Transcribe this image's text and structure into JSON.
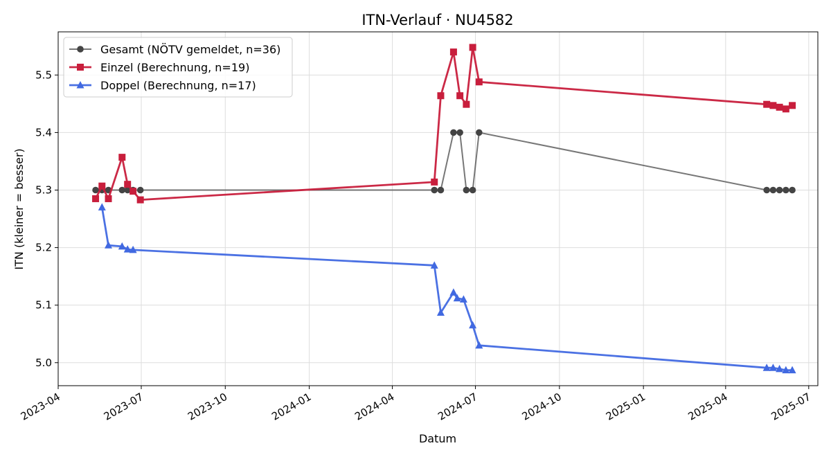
{
  "chart_data": {
    "type": "line",
    "title": "ITN-Verlauf · NU4582",
    "xlabel": "Datum",
    "ylabel": "ITN  (kleiner = besser)",
    "x_is_date": true,
    "xlim": [
      "2023-04-01",
      "2025-07-11"
    ],
    "ylim": [
      4.96,
      5.575
    ],
    "grid": true,
    "legend_position": "top-left",
    "x_ticks": [
      "2023-04",
      "2023-07",
      "2023-10",
      "2024-01",
      "2024-04",
      "2024-07",
      "2024-10",
      "2025-01",
      "2025-04",
      "2025-07"
    ],
    "y_ticks": [
      "5.0",
      "5.1",
      "5.2",
      "5.3",
      "5.4",
      "5.5"
    ],
    "series": [
      {
        "name": "Gesamt (NÖTV gemeldet, n=36)",
        "color": "#555555",
        "marker": "circle",
        "points": [
          [
            "2023-05-12",
            5.3
          ],
          [
            "2023-05-19",
            5.3
          ],
          [
            "2023-05-26",
            5.3
          ],
          [
            "2023-06-10",
            5.3
          ],
          [
            "2023-06-16",
            5.3
          ],
          [
            "2023-06-22",
            5.3
          ],
          [
            "2023-06-30",
            5.3
          ],
          [
            "2024-05-17",
            5.3
          ],
          [
            "2024-05-24",
            5.3
          ],
          [
            "2024-06-07",
            5.4
          ],
          [
            "2024-06-14",
            5.4
          ],
          [
            "2024-06-21",
            5.3
          ],
          [
            "2024-06-28",
            5.3
          ],
          [
            "2024-07-05",
            5.4
          ],
          [
            "2025-05-16",
            5.3
          ],
          [
            "2025-05-23",
            5.3
          ],
          [
            "2025-05-30",
            5.3
          ],
          [
            "2025-06-06",
            5.3
          ],
          [
            "2025-06-13",
            5.3
          ]
        ]
      },
      {
        "name": "Einzel (Berechnung, n=19)",
        "color": "#c81e3c",
        "marker": "square",
        "points": [
          [
            "2023-05-12",
            5.285
          ],
          [
            "2023-05-19",
            5.307
          ],
          [
            "2023-05-26",
            5.285
          ],
          [
            "2023-06-10",
            5.357
          ],
          [
            "2023-06-16",
            5.31
          ],
          [
            "2023-06-22",
            5.298
          ],
          [
            "2023-06-30",
            5.283
          ],
          [
            "2024-05-17",
            5.314
          ],
          [
            "2024-05-24",
            5.464
          ],
          [
            "2024-06-07",
            5.54
          ],
          [
            "2024-06-14",
            5.464
          ],
          [
            "2024-06-21",
            5.449
          ],
          [
            "2024-06-28",
            5.548
          ],
          [
            "2024-07-05",
            5.488
          ],
          [
            "2025-05-16",
            5.449
          ],
          [
            "2025-05-23",
            5.447
          ],
          [
            "2025-05-30",
            5.444
          ],
          [
            "2025-06-06",
            5.441
          ],
          [
            "2025-06-13",
            5.447
          ]
        ]
      },
      {
        "name": "Doppel (Berechnung, n=17)",
        "color": "#4169e1",
        "marker": "triangle",
        "points": [
          [
            "2023-05-19",
            5.27
          ],
          [
            "2023-05-26",
            5.204
          ],
          [
            "2023-06-10",
            5.202
          ],
          [
            "2023-06-16",
            5.197
          ],
          [
            "2023-06-22",
            5.196
          ],
          [
            "2024-05-17",
            5.169
          ],
          [
            "2024-05-24",
            5.087
          ],
          [
            "2024-06-07",
            5.122
          ],
          [
            "2024-06-11",
            5.112
          ],
          [
            "2024-06-18",
            5.11
          ],
          [
            "2024-06-28",
            5.065
          ],
          [
            "2024-07-05",
            5.03
          ],
          [
            "2025-05-16",
            4.991
          ],
          [
            "2025-05-23",
            4.991
          ],
          [
            "2025-05-30",
            4.989
          ],
          [
            "2025-06-06",
            4.987
          ],
          [
            "2025-06-13",
            4.987
          ]
        ]
      }
    ]
  }
}
